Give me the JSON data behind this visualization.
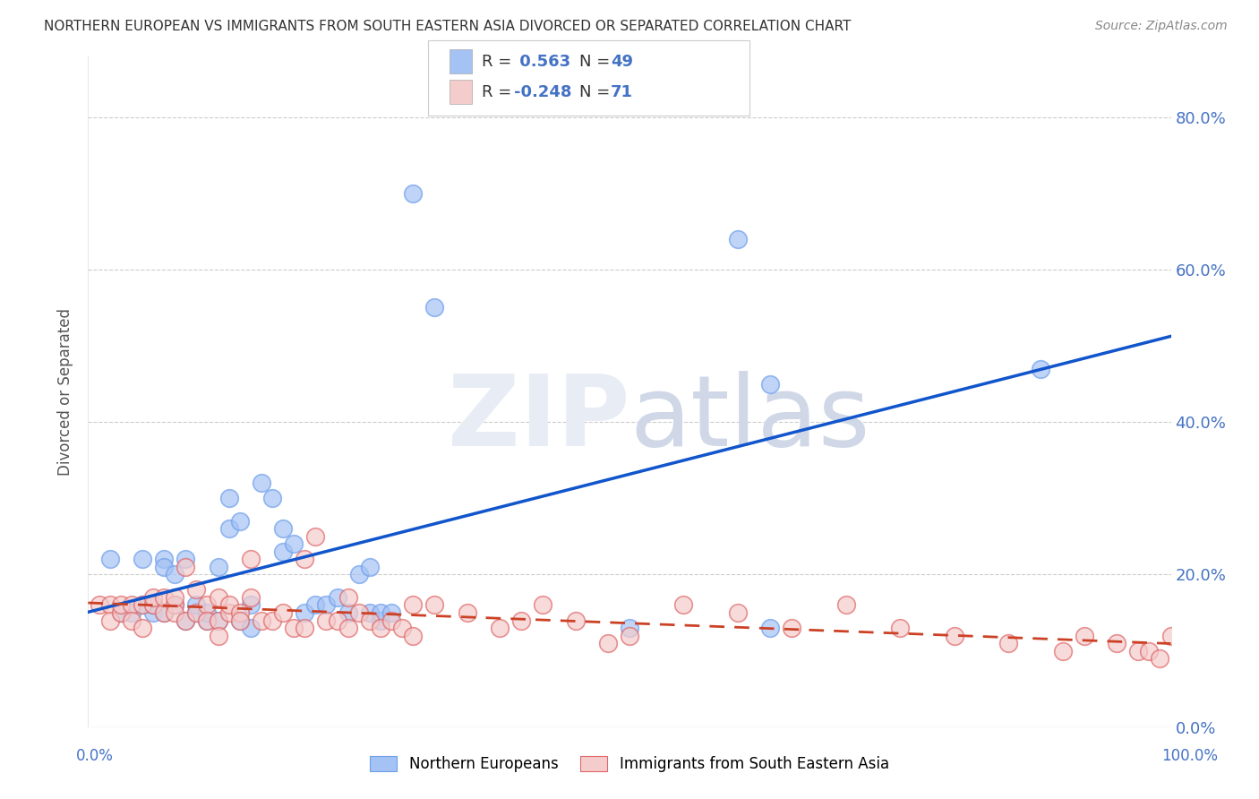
{
  "title": "NORTHERN EUROPEAN VS IMMIGRANTS FROM SOUTH EASTERN ASIA DIVORCED OR SEPARATED CORRELATION CHART",
  "source": "Source: ZipAtlas.com",
  "ylabel": "Divorced or Separated",
  "xlim": [
    0.0,
    1.0
  ],
  "ylim": [
    0.0,
    0.88
  ],
  "yticks": [
    0.0,
    0.2,
    0.4,
    0.6,
    0.8
  ],
  "xticks": [
    0.0,
    0.25,
    0.5,
    0.75,
    1.0
  ],
  "blue_R": 0.563,
  "blue_N": 49,
  "pink_R": -0.248,
  "pink_N": 71,
  "blue_color": "#a4c2f4",
  "pink_color": "#f4cccc",
  "blue_edge_color": "#6d9eeb",
  "pink_edge_color": "#e06666",
  "blue_line_color": "#1155cc",
  "pink_line_color": "#cc4125",
  "watermark_color": "#e8edf5",
  "tick_color": "#4472c4",
  "legend_label_blue": "Northern Europeans",
  "legend_label_pink": "Immigrants from South Eastern Asia",
  "blue_scatter_x": [
    0.02,
    0.03,
    0.04,
    0.05,
    0.05,
    0.06,
    0.06,
    0.07,
    0.07,
    0.07,
    0.08,
    0.08,
    0.09,
    0.09,
    0.1,
    0.1,
    0.11,
    0.11,
    0.12,
    0.12,
    0.13,
    0.13,
    0.14,
    0.14,
    0.15,
    0.15,
    0.16,
    0.17,
    0.18,
    0.18,
    0.19,
    0.2,
    0.21,
    0.22,
    0.23,
    0.24,
    0.25,
    0.26,
    0.26,
    0.27,
    0.27,
    0.28,
    0.3,
    0.32,
    0.5,
    0.6,
    0.63,
    0.63,
    0.88
  ],
  "blue_scatter_y": [
    0.22,
    0.15,
    0.15,
    0.16,
    0.22,
    0.15,
    0.16,
    0.22,
    0.21,
    0.15,
    0.2,
    0.16,
    0.14,
    0.22,
    0.15,
    0.16,
    0.14,
    0.15,
    0.14,
    0.21,
    0.26,
    0.3,
    0.27,
    0.14,
    0.13,
    0.16,
    0.32,
    0.3,
    0.23,
    0.26,
    0.24,
    0.15,
    0.16,
    0.16,
    0.17,
    0.15,
    0.2,
    0.15,
    0.21,
    0.14,
    0.15,
    0.15,
    0.7,
    0.55,
    0.13,
    0.64,
    0.45,
    0.13,
    0.47
  ],
  "pink_scatter_x": [
    0.01,
    0.02,
    0.02,
    0.03,
    0.03,
    0.04,
    0.04,
    0.05,
    0.05,
    0.06,
    0.06,
    0.07,
    0.07,
    0.08,
    0.08,
    0.08,
    0.09,
    0.09,
    0.1,
    0.1,
    0.11,
    0.11,
    0.12,
    0.12,
    0.12,
    0.13,
    0.13,
    0.14,
    0.14,
    0.15,
    0.15,
    0.16,
    0.17,
    0.18,
    0.19,
    0.2,
    0.2,
    0.21,
    0.22,
    0.23,
    0.24,
    0.24,
    0.25,
    0.26,
    0.27,
    0.28,
    0.29,
    0.3,
    0.3,
    0.32,
    0.35,
    0.38,
    0.4,
    0.42,
    0.45,
    0.48,
    0.5,
    0.55,
    0.6,
    0.65,
    0.7,
    0.75,
    0.8,
    0.85,
    0.9,
    0.92,
    0.95,
    0.97,
    0.98,
    0.99,
    1.0
  ],
  "pink_scatter_y": [
    0.16,
    0.16,
    0.14,
    0.15,
    0.16,
    0.16,
    0.14,
    0.16,
    0.13,
    0.16,
    0.17,
    0.15,
    0.17,
    0.16,
    0.15,
    0.17,
    0.14,
    0.21,
    0.15,
    0.18,
    0.16,
    0.14,
    0.14,
    0.17,
    0.12,
    0.15,
    0.16,
    0.15,
    0.14,
    0.17,
    0.22,
    0.14,
    0.14,
    0.15,
    0.13,
    0.22,
    0.13,
    0.25,
    0.14,
    0.14,
    0.17,
    0.13,
    0.15,
    0.14,
    0.13,
    0.14,
    0.13,
    0.16,
    0.12,
    0.16,
    0.15,
    0.13,
    0.14,
    0.16,
    0.14,
    0.11,
    0.12,
    0.16,
    0.15,
    0.13,
    0.16,
    0.13,
    0.12,
    0.11,
    0.1,
    0.12,
    0.11,
    0.1,
    0.1,
    0.09,
    0.12
  ]
}
